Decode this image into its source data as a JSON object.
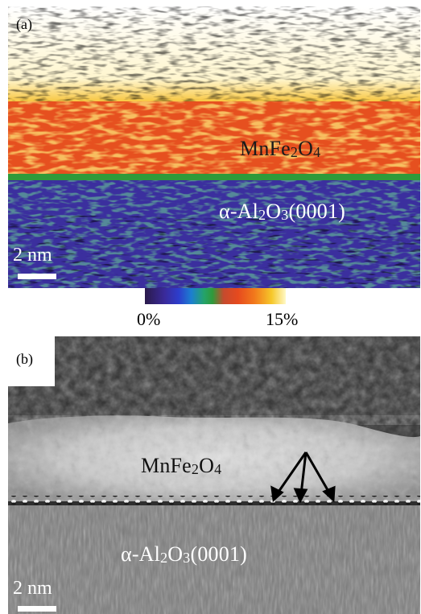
{
  "panel_a": {
    "label": "(a)",
    "film_label": {
      "main": "MnFe",
      "sub1": "2",
      "mid": "O",
      "sub2": "4"
    },
    "substrate_label": {
      "pre": "α-Al",
      "sub1": "2",
      "mid": "O",
      "sub2": "3",
      "post": "(0001)"
    },
    "scale_label": "2 nm",
    "colorbar": {
      "min_label": "0%",
      "max_label": "15%"
    }
  },
  "panel_b": {
    "label": "(b)",
    "film_label": {
      "main": "MnFe",
      "sub1": "2",
      "mid": "O",
      "sub2": "4"
    },
    "substrate_label": {
      "pre": "α-Al",
      "sub1": "2",
      "mid": "O",
      "sub2": "3",
      "post": "(0001)"
    },
    "scale_label": "2 nm"
  },
  "colors": {
    "strain_high": "#e8551e",
    "strain_low": "#3b2f9e",
    "colorbar_stops": [
      "#2a1a4a",
      "#3a2a9a",
      "#2d3dcc",
      "#1c7fd0",
      "#24a36a",
      "#2f9a3a",
      "#c64a2e",
      "#e64a1e",
      "#f27a1c",
      "#f6c82a",
      "#fff9c8"
    ]
  }
}
